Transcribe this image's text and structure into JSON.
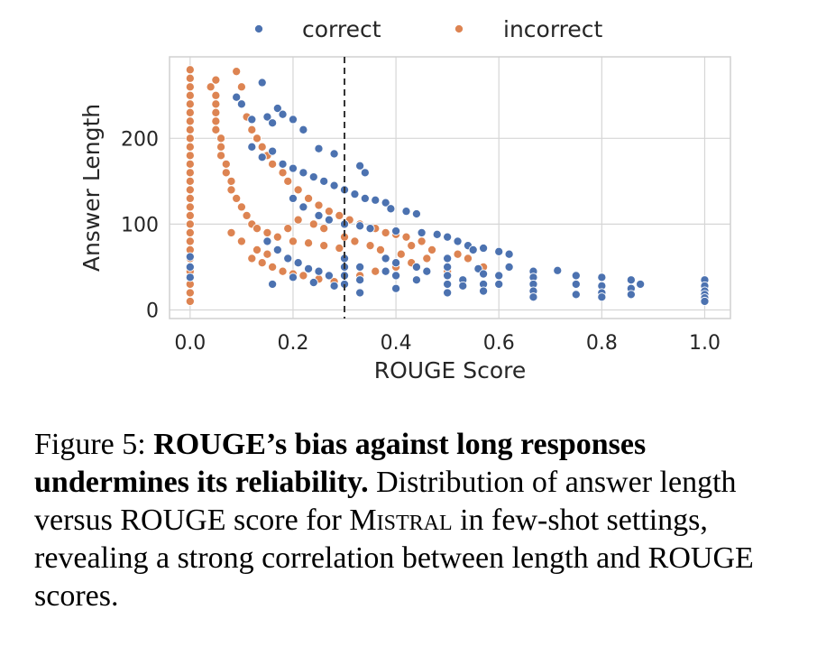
{
  "caption": {
    "fig_label": "Figure 5:",
    "bold_text": "ROUGE’s bias against long responses undermines its reliability.",
    "text_before_model": "Distribution of answer length versus ROUGE score for",
    "model_name": "Mistral",
    "text_after_model": "in few-shot settings, revealing a strong correlation between length and ROUGE scores."
  },
  "chart_data": {
    "type": "scatter",
    "xlabel": "ROUGE Score",
    "ylabel": "Answer Length",
    "xlim": [
      -0.04,
      1.05
    ],
    "ylim": [
      -10,
      295
    ],
    "xticks": [
      0.0,
      0.2,
      0.4,
      0.6,
      0.8,
      1.0
    ],
    "xtick_labels": [
      "0.0",
      "0.2",
      "0.4",
      "0.6",
      "0.8",
      "1.0"
    ],
    "yticks": [
      0,
      100,
      200
    ],
    "ytick_labels": [
      "0",
      "100",
      "200"
    ],
    "grid": true,
    "legend_position": "top-center",
    "threshold_line": {
      "x": 0.3,
      "style": "dashed",
      "color": "#333333"
    },
    "series": [
      {
        "name": "correct",
        "color": "#4c72b0",
        "points": [
          [
            0.0,
            50
          ],
          [
            0.0,
            38
          ],
          [
            0.0,
            62
          ],
          [
            0.09,
            248
          ],
          [
            0.1,
            240
          ],
          [
            0.12,
            222
          ],
          [
            0.14,
            265
          ],
          [
            0.15,
            225
          ],
          [
            0.16,
            218
          ],
          [
            0.17,
            235
          ],
          [
            0.18,
            228
          ],
          [
            0.2,
            222
          ],
          [
            0.22,
            210
          ],
          [
            0.25,
            188
          ],
          [
            0.28,
            182
          ],
          [
            0.33,
            168
          ],
          [
            0.34,
            160
          ],
          [
            0.12,
            190
          ],
          [
            0.14,
            178
          ],
          [
            0.16,
            185
          ],
          [
            0.18,
            170
          ],
          [
            0.2,
            165
          ],
          [
            0.22,
            160
          ],
          [
            0.24,
            155
          ],
          [
            0.26,
            150
          ],
          [
            0.28,
            145
          ],
          [
            0.3,
            140
          ],
          [
            0.32,
            135
          ],
          [
            0.34,
            130
          ],
          [
            0.36,
            128
          ],
          [
            0.38,
            125
          ],
          [
            0.39,
            118
          ],
          [
            0.42,
            115
          ],
          [
            0.44,
            112
          ],
          [
            0.2,
            130
          ],
          [
            0.22,
            120
          ],
          [
            0.25,
            110
          ],
          [
            0.27,
            105
          ],
          [
            0.3,
            100
          ],
          [
            0.33,
            98
          ],
          [
            0.35,
            95
          ],
          [
            0.4,
            92
          ],
          [
            0.45,
            90
          ],
          [
            0.48,
            88
          ],
          [
            0.5,
            85
          ],
          [
            0.52,
            80
          ],
          [
            0.54,
            75
          ],
          [
            0.55,
            70
          ],
          [
            0.57,
            72
          ],
          [
            0.6,
            68
          ],
          [
            0.62,
            65
          ],
          [
            0.3,
            60
          ],
          [
            0.3,
            50
          ],
          [
            0.3,
            40
          ],
          [
            0.3,
            30
          ],
          [
            0.33,
            50
          ],
          [
            0.33,
            35
          ],
          [
            0.33,
            20
          ],
          [
            0.38,
            60
          ],
          [
            0.38,
            45
          ],
          [
            0.4,
            55
          ],
          [
            0.4,
            40
          ],
          [
            0.4,
            25
          ],
          [
            0.44,
            50
          ],
          [
            0.44,
            35
          ],
          [
            0.46,
            45
          ],
          [
            0.5,
            60
          ],
          [
            0.5,
            50
          ],
          [
            0.5,
            40
          ],
          [
            0.5,
            30
          ],
          [
            0.5,
            20
          ],
          [
            0.53,
            35
          ],
          [
            0.53,
            28
          ],
          [
            0.56,
            48
          ],
          [
            0.57,
            42
          ],
          [
            0.57,
            30
          ],
          [
            0.57,
            22
          ],
          [
            0.6,
            40
          ],
          [
            0.6,
            30
          ],
          [
            0.62,
            50
          ],
          [
            0.667,
            45
          ],
          [
            0.667,
            38
          ],
          [
            0.667,
            30
          ],
          [
            0.667,
            22
          ],
          [
            0.667,
            15
          ],
          [
            0.714,
            46
          ],
          [
            0.75,
            40
          ],
          [
            0.75,
            30
          ],
          [
            0.75,
            18
          ],
          [
            0.8,
            38
          ],
          [
            0.8,
            28
          ],
          [
            0.8,
            20
          ],
          [
            0.8,
            15
          ],
          [
            0.857,
            35
          ],
          [
            0.857,
            25
          ],
          [
            0.857,
            18
          ],
          [
            0.875,
            30
          ],
          [
            1.0,
            35
          ],
          [
            1.0,
            28
          ],
          [
            1.0,
            22
          ],
          [
            1.0,
            18
          ],
          [
            1.0,
            14
          ],
          [
            1.0,
            10
          ],
          [
            0.15,
            80
          ],
          [
            0.17,
            70
          ],
          [
            0.19,
            60
          ],
          [
            0.21,
            55
          ],
          [
            0.23,
            48
          ],
          [
            0.25,
            45
          ],
          [
            0.27,
            40
          ],
          [
            0.16,
            30
          ],
          [
            0.2,
            38
          ],
          [
            0.24,
            32
          ],
          [
            0.28,
            28
          ]
        ]
      },
      {
        "name": "incorrect",
        "color": "#dd8452",
        "points": [
          [
            0.0,
            280
          ],
          [
            0.0,
            270
          ],
          [
            0.0,
            260
          ],
          [
            0.0,
            250
          ],
          [
            0.0,
            240
          ],
          [
            0.0,
            230
          ],
          [
            0.0,
            220
          ],
          [
            0.0,
            210
          ],
          [
            0.0,
            200
          ],
          [
            0.0,
            190
          ],
          [
            0.0,
            180
          ],
          [
            0.0,
            170
          ],
          [
            0.0,
            160
          ],
          [
            0.0,
            150
          ],
          [
            0.0,
            140
          ],
          [
            0.0,
            130
          ],
          [
            0.0,
            120
          ],
          [
            0.0,
            110
          ],
          [
            0.0,
            100
          ],
          [
            0.0,
            90
          ],
          [
            0.0,
            80
          ],
          [
            0.0,
            70
          ],
          [
            0.0,
            60
          ],
          [
            0.0,
            45
          ],
          [
            0.0,
            30
          ],
          [
            0.0,
            20
          ],
          [
            0.0,
            10
          ],
          [
            0.04,
            260
          ],
          [
            0.05,
            268
          ],
          [
            0.05,
            250
          ],
          [
            0.05,
            240
          ],
          [
            0.05,
            230
          ],
          [
            0.05,
            220
          ],
          [
            0.05,
            210
          ],
          [
            0.06,
            200
          ],
          [
            0.06,
            190
          ],
          [
            0.06,
            180
          ],
          [
            0.07,
            170
          ],
          [
            0.07,
            160
          ],
          [
            0.08,
            150
          ],
          [
            0.08,
            140
          ],
          [
            0.09,
            130
          ],
          [
            0.1,
            120
          ],
          [
            0.11,
            110
          ],
          [
            0.12,
            100
          ],
          [
            0.13,
            95
          ],
          [
            0.15,
            90
          ],
          [
            0.17,
            85
          ],
          [
            0.2,
            80
          ],
          [
            0.23,
            78
          ],
          [
            0.26,
            75
          ],
          [
            0.29,
            72
          ],
          [
            0.09,
            278
          ],
          [
            0.1,
            260
          ],
          [
            0.1,
            240
          ],
          [
            0.11,
            225
          ],
          [
            0.12,
            210
          ],
          [
            0.13,
            200
          ],
          [
            0.14,
            190
          ],
          [
            0.15,
            180
          ],
          [
            0.16,
            170
          ],
          [
            0.18,
            160
          ],
          [
            0.19,
            150
          ],
          [
            0.21,
            140
          ],
          [
            0.23,
            130
          ],
          [
            0.25,
            122
          ],
          [
            0.27,
            115
          ],
          [
            0.29,
            110
          ],
          [
            0.31,
            105
          ],
          [
            0.33,
            100
          ],
          [
            0.36,
            95
          ],
          [
            0.38,
            90
          ],
          [
            0.4,
            88
          ],
          [
            0.42,
            85
          ],
          [
            0.45,
            80
          ],
          [
            0.12,
            60
          ],
          [
            0.14,
            55
          ],
          [
            0.16,
            50
          ],
          [
            0.18,
            45
          ],
          [
            0.2,
            42
          ],
          [
            0.22,
            40
          ],
          [
            0.25,
            36
          ],
          [
            0.28,
            33
          ],
          [
            0.3,
            30
          ],
          [
            0.33,
            40
          ],
          [
            0.36,
            45
          ],
          [
            0.4,
            50
          ],
          [
            0.43,
            55
          ],
          [
            0.46,
            60
          ],
          [
            0.5,
            45
          ],
          [
            0.54,
            60
          ],
          [
            0.57,
            50
          ],
          [
            0.08,
            90
          ],
          [
            0.1,
            80
          ],
          [
            0.13,
            70
          ],
          [
            0.15,
            65
          ],
          [
            0.19,
            95
          ],
          [
            0.21,
            105
          ],
          [
            0.24,
            100
          ],
          [
            0.26,
            95
          ],
          [
            0.3,
            85
          ],
          [
            0.32,
            80
          ],
          [
            0.35,
            75
          ],
          [
            0.37,
            70
          ],
          [
            0.41,
            65
          ],
          [
            0.43,
            75
          ],
          [
            0.47,
            70
          ],
          [
            0.52,
            65
          ]
        ]
      }
    ]
  }
}
